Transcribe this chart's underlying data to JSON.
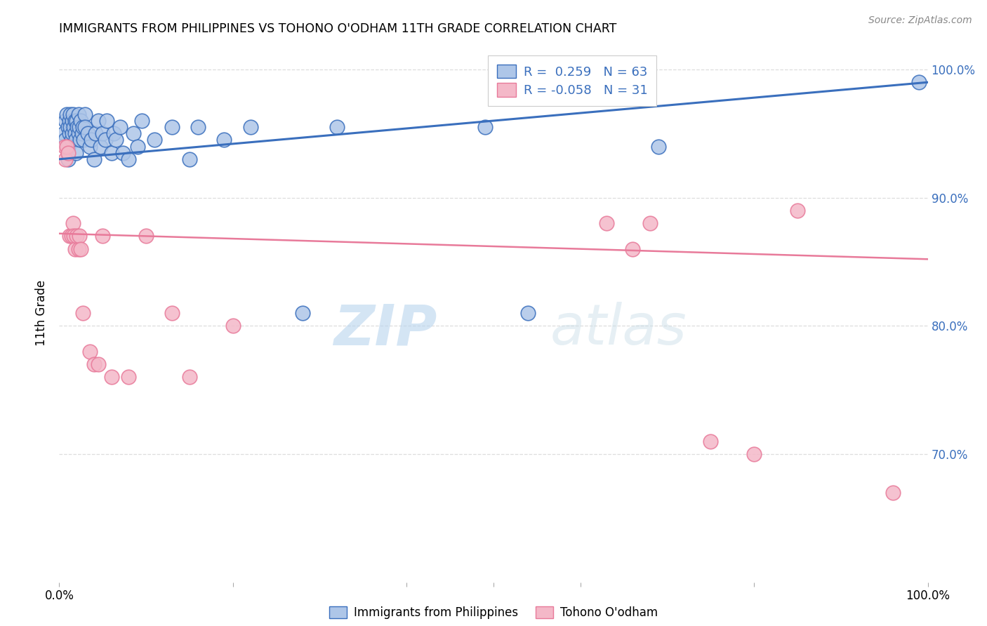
{
  "title": "IMMIGRANTS FROM PHILIPPINES VS TOHONO O'ODHAM 11TH GRADE CORRELATION CHART",
  "source": "Source: ZipAtlas.com",
  "ylabel": "11th Grade",
  "legend_blue_r": "0.259",
  "legend_blue_n": "63",
  "legend_pink_r": "-0.058",
  "legend_pink_n": "31",
  "blue_color": "#aec6e8",
  "pink_color": "#f4b8c8",
  "blue_line_color": "#3a6fbd",
  "pink_line_color": "#e87a9a",
  "watermark_zip": "ZIP",
  "watermark_atlas": "atlas",
  "blue_scatter_x": [
    0.005,
    0.007,
    0.007,
    0.009,
    0.01,
    0.01,
    0.01,
    0.012,
    0.012,
    0.013,
    0.013,
    0.014,
    0.015,
    0.015,
    0.016,
    0.017,
    0.018,
    0.018,
    0.019,
    0.019,
    0.02,
    0.021,
    0.022,
    0.022,
    0.023,
    0.024,
    0.025,
    0.026,
    0.027,
    0.028,
    0.03,
    0.03,
    0.033,
    0.035,
    0.037,
    0.04,
    0.042,
    0.045,
    0.047,
    0.05,
    0.053,
    0.055,
    0.06,
    0.063,
    0.065,
    0.07,
    0.073,
    0.08,
    0.085,
    0.09,
    0.095,
    0.11,
    0.13,
    0.15,
    0.16,
    0.19,
    0.22,
    0.28,
    0.32,
    0.49,
    0.54,
    0.69,
    0.99
  ],
  "blue_scatter_y": [
    0.95,
    0.96,
    0.945,
    0.965,
    0.955,
    0.94,
    0.93,
    0.96,
    0.95,
    0.965,
    0.955,
    0.945,
    0.96,
    0.95,
    0.965,
    0.955,
    0.96,
    0.95,
    0.945,
    0.935,
    0.96,
    0.955,
    0.965,
    0.95,
    0.955,
    0.945,
    0.96,
    0.95,
    0.955,
    0.945,
    0.965,
    0.955,
    0.95,
    0.94,
    0.945,
    0.93,
    0.95,
    0.96,
    0.94,
    0.95,
    0.945,
    0.96,
    0.935,
    0.95,
    0.945,
    0.955,
    0.935,
    0.93,
    0.95,
    0.94,
    0.96,
    0.945,
    0.955,
    0.93,
    0.955,
    0.945,
    0.955,
    0.81,
    0.955,
    0.955,
    0.81,
    0.94,
    0.99
  ],
  "pink_scatter_x": [
    0.006,
    0.007,
    0.009,
    0.01,
    0.012,
    0.014,
    0.016,
    0.017,
    0.018,
    0.02,
    0.022,
    0.023,
    0.025,
    0.027,
    0.035,
    0.04,
    0.045,
    0.05,
    0.06,
    0.08,
    0.1,
    0.13,
    0.15,
    0.2,
    0.63,
    0.66,
    0.68,
    0.75,
    0.8,
    0.85,
    0.96
  ],
  "pink_scatter_y": [
    0.94,
    0.93,
    0.94,
    0.935,
    0.87,
    0.87,
    0.88,
    0.87,
    0.86,
    0.87,
    0.86,
    0.87,
    0.86,
    0.81,
    0.78,
    0.77,
    0.77,
    0.87,
    0.76,
    0.76,
    0.87,
    0.81,
    0.76,
    0.8,
    0.88,
    0.86,
    0.88,
    0.71,
    0.7,
    0.89,
    0.67
  ],
  "blue_line_x0": 0.0,
  "blue_line_y0": 0.93,
  "blue_line_x1": 1.0,
  "blue_line_y1": 0.99,
  "pink_line_x0": 0.0,
  "pink_line_y0": 0.872,
  "pink_line_x1": 1.0,
  "pink_line_y1": 0.852,
  "xlim": [
    0.0,
    1.0
  ],
  "ylim": [
    0.6,
    1.02
  ],
  "yticks": [
    0.7,
    0.8,
    0.9,
    1.0
  ],
  "ytick_labels": [
    "70.0%",
    "80.0%",
    "90.0%",
    "100.0%"
  ]
}
